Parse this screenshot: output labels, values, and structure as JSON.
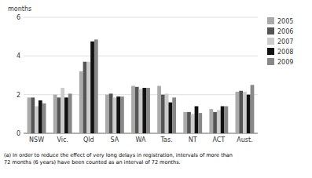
{
  "chart_data": {
    "type": "bar",
    "categories": [
      "NSW",
      "Vic.",
      "Qld",
      "SA",
      "WA",
      "Tas.",
      "NT",
      "ACT",
      "Aust."
    ],
    "series": [
      {
        "name": "2005",
        "color": "#aaaaaa",
        "values": [
          1.85,
          2.0,
          3.2,
          2.0,
          2.45,
          2.45,
          1.1,
          1.25,
          2.15
        ]
      },
      {
        "name": "2006",
        "color": "#555555",
        "values": [
          1.85,
          1.85,
          3.7,
          2.05,
          2.4,
          2.0,
          1.1,
          1.1,
          2.2
        ]
      },
      {
        "name": "2007",
        "color": "#cccccc",
        "values": [
          1.4,
          2.35,
          3.7,
          1.85,
          2.3,
          2.05,
          1.0,
          1.2,
          2.15
        ]
      },
      {
        "name": "2008",
        "color": "#111111",
        "values": [
          1.7,
          1.85,
          4.75,
          1.9,
          2.35,
          1.6,
          1.4,
          1.4,
          2.0
        ]
      },
      {
        "name": "2009",
        "color": "#888888",
        "values": [
          1.55,
          2.05,
          4.85,
          1.9,
          2.35,
          1.85,
          1.05,
          1.4,
          2.5
        ]
      }
    ],
    "ylabel": "months",
    "ylim": [
      0,
      6
    ],
    "yticks": [
      0,
      2,
      4,
      6
    ],
    "grid": true,
    "legend": "right",
    "footnote": "(a) In order to reduce the effect of very long delays in registration, intervals of more than\n72 months (6 years) have been counted as an interval of 72 months."
  }
}
